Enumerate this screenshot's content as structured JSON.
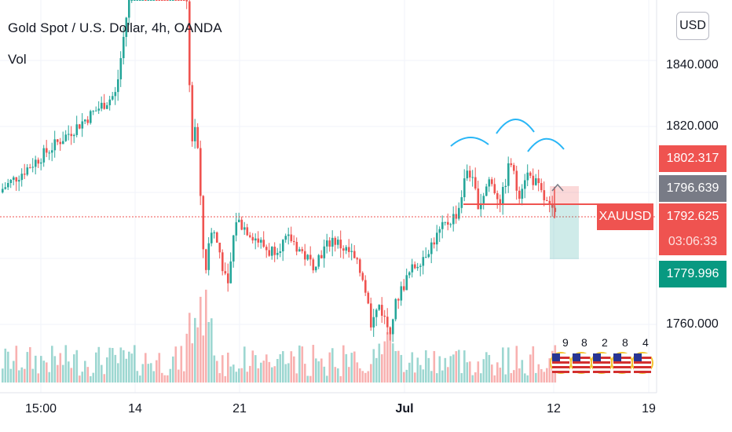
{
  "header": {
    "title": "Gold Spot / U.S. Dollar, 4h, OANDA",
    "indicator": "Vol",
    "currency": "USD"
  },
  "price_axis": {
    "labels": [
      "1840.000",
      "1820.000",
      "1760.000"
    ]
  },
  "tags": {
    "high_line": "1802.317",
    "mid_line": "1796.639",
    "symbol": "XAUUSD",
    "last_price": "1792.625",
    "countdown": "03:06:33",
    "low_line": "1779.996"
  },
  "time_axis": {
    "labels": [
      "15:00",
      "14",
      "21",
      "Jul",
      "12",
      "19"
    ]
  },
  "events": {
    "numbers": [
      "9",
      "8",
      "2",
      "8",
      "4"
    ]
  },
  "colors": {
    "up": "#26a69a",
    "down": "#ef5350",
    "pattern_arc": "#29b6f6",
    "last_price_line": "#ef5350"
  }
}
